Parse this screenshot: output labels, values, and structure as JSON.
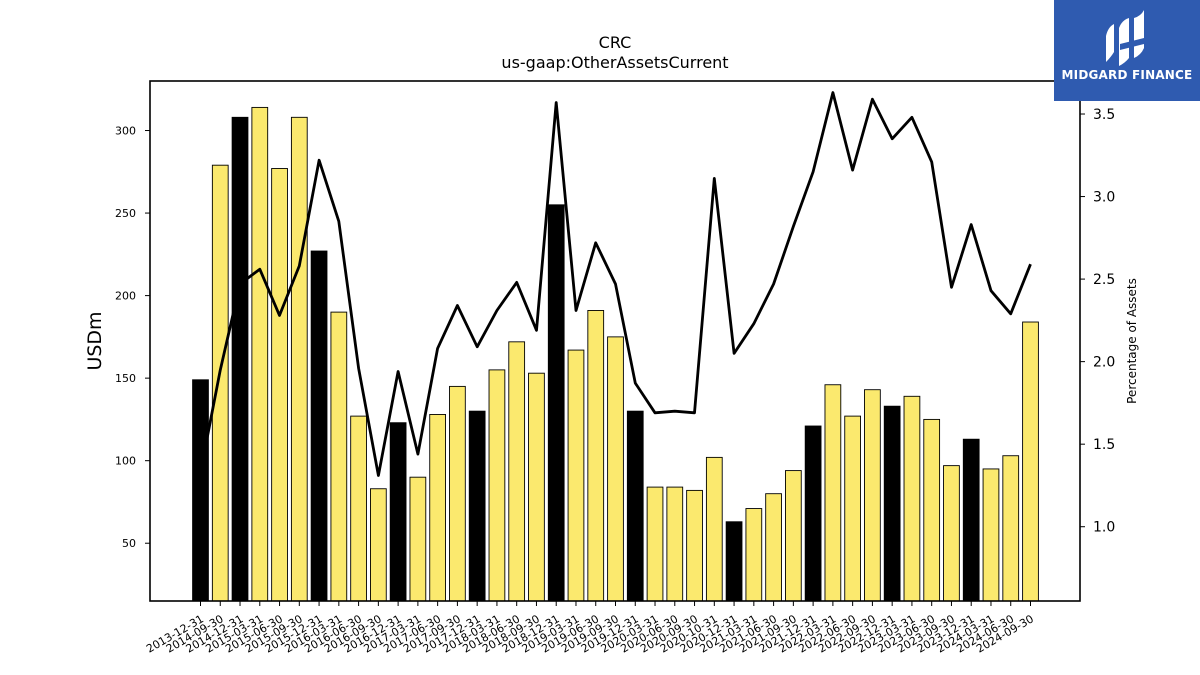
{
  "chart_data": {
    "type": "bar",
    "title": "CRC",
    "subtitle": "us-gaap:OtherAssetsCurrent",
    "ylabel": "USDm",
    "y2label": "Percentage of Assets",
    "ylim": [
      15,
      330
    ],
    "y2lim": [
      0.55,
      3.7
    ],
    "yticks": [
      50,
      100,
      150,
      200,
      250,
      300
    ],
    "y2ticks": [
      1.0,
      1.5,
      2.0,
      2.5,
      3.0,
      3.5
    ],
    "y2ticklabels": [
      "1.0",
      "1.5",
      "2.0",
      "2.5",
      "3.0",
      "3.5"
    ],
    "grid": false,
    "categories": [
      "2013-12-31",
      "2014-09-30",
      "2014-12-31",
      "2015-03-31",
      "2015-06-30",
      "2015-09-30",
      "2015-12-31",
      "2016-03-31",
      "2016-06-30",
      "2016-09-30",
      "2016-12-31",
      "2017-03-31",
      "2017-06-30",
      "2017-09-30",
      "2017-12-31",
      "2018-03-31",
      "2018-06-30",
      "2018-09-30",
      "2018-12-31",
      "2019-03-31",
      "2019-06-30",
      "2019-09-30",
      "2019-12-31",
      "2020-03-31",
      "2020-06-30",
      "2020-09-30",
      "2020-10-31",
      "2020-12-31",
      "2021-03-31",
      "2021-06-30",
      "2021-09-30",
      "2021-12-31",
      "2022-03-31",
      "2022-06-30",
      "2022-09-30",
      "2022-12-31",
      "2023-03-31",
      "2023-06-30",
      "2023-09-30",
      "2023-12-31",
      "2024-03-31",
      "2024-06-30",
      "2024-09-30"
    ],
    "series": [
      {
        "type": "bar",
        "values": [
          149,
          279,
          308,
          314,
          277,
          308,
          227,
          190,
          127,
          83,
          123,
          90,
          128,
          145,
          130,
          155,
          172,
          153,
          255,
          167,
          191,
          175,
          130,
          84,
          84,
          82,
          102,
          63,
          71,
          80,
          94,
          121,
          146,
          127,
          143,
          133,
          139,
          125,
          97,
          113,
          95,
          103,
          184
        ],
        "highlight": [
          true,
          false,
          true,
          false,
          false,
          false,
          true,
          false,
          false,
          false,
          true,
          false,
          false,
          false,
          true,
          false,
          false,
          false,
          true,
          false,
          false,
          false,
          true,
          false,
          false,
          false,
          false,
          true,
          false,
          false,
          false,
          true,
          false,
          false,
          false,
          true,
          false,
          false,
          false,
          true,
          false,
          false,
          false
        ],
        "colors": {
          "normal": "#fbe96e",
          "highlight": "#000000"
        }
      },
      {
        "type": "line",
        "axis": "right",
        "color": "#000000",
        "values": [
          1.33,
          1.95,
          2.47,
          2.56,
          2.28,
          2.58,
          3.22,
          2.85,
          1.96,
          1.31,
          1.94,
          1.44,
          2.08,
          2.34,
          2.09,
          2.31,
          2.48,
          2.19,
          3.57,
          2.31,
          2.72,
          2.47,
          1.87,
          1.69,
          1.7,
          1.69,
          3.11,
          2.05,
          2.23,
          2.47,
          2.82,
          3.15,
          3.63,
          3.16,
          3.59,
          3.35,
          3.48,
          3.21,
          2.45,
          2.83,
          2.43,
          2.29,
          2.59
        ]
      }
    ]
  },
  "logo": {
    "text": "MIDGARD FINANCE"
  }
}
